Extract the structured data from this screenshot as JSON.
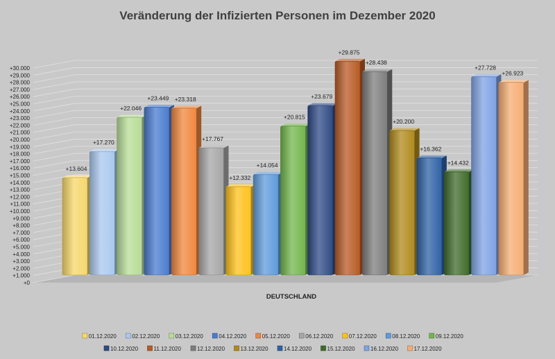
{
  "chart_data": {
    "type": "bar",
    "title": "Veränderung der Infizierten Personen im Dezember 2020",
    "xlabel": "",
    "ylabel": "",
    "categories": [
      "DEUTSCHLAND"
    ],
    "ylim": [
      0,
      30000
    ],
    "ytick_step": 1000,
    "y_tick_prefix": "+",
    "grid": true,
    "legend_position": "bottom",
    "series": [
      {
        "name": "01.12.2020",
        "value": 13604,
        "label": "+13.604",
        "color": "#f5d76a"
      },
      {
        "name": "02.12.2020",
        "value": 17270,
        "label": "+17.270",
        "color": "#a9c8ee"
      },
      {
        "name": "03.12.2020",
        "value": 22046,
        "label": "+22.046",
        "color": "#b7dc96"
      },
      {
        "name": "04.12.2020",
        "value": 23449,
        "label": "+23.449",
        "color": "#4a7bd0"
      },
      {
        "name": "05.12.2020",
        "value": 23318,
        "label": "+23.318",
        "color": "#f0873d"
      },
      {
        "name": "06.12.2020",
        "value": 17767,
        "label": "+17.767",
        "color": "#a6a6a6"
      },
      {
        "name": "07.12.2020",
        "value": 12332,
        "label": "+12.332",
        "color": "#ffc21c"
      },
      {
        "name": "08.12.2020",
        "value": 14054,
        "label": "+14.054",
        "color": "#5f9bdb"
      },
      {
        "name": "09.12.2020",
        "value": 20815,
        "label": "+20.815",
        "color": "#73b54d"
      },
      {
        "name": "10.12.2020",
        "value": 23679,
        "label": "+23.679",
        "color": "#2f4b85"
      },
      {
        "name": "11.12.2020",
        "value": 29875,
        "label": "+29.875",
        "color": "#b85a24"
      },
      {
        "name": "12.12.2020",
        "value": 28438,
        "label": "+28.438",
        "color": "#7d7d7d"
      },
      {
        "name": "13.12.2020",
        "value": 20200,
        "label": "+20.200",
        "color": "#b08a1c"
      },
      {
        "name": "14.12.2020",
        "value": 16362,
        "label": "+16.362",
        "color": "#2e62a6"
      },
      {
        "name": "15.12.2020",
        "value": 14432,
        "label": "+14.432",
        "color": "#3f6b2b"
      },
      {
        "name": "16.12.2020",
        "value": 27728,
        "label": "+27.728",
        "color": "#7fa2e4"
      },
      {
        "name": "17.12.2020",
        "value": 26923,
        "label": "+26.923",
        "color": "#f6ad72"
      }
    ]
  }
}
